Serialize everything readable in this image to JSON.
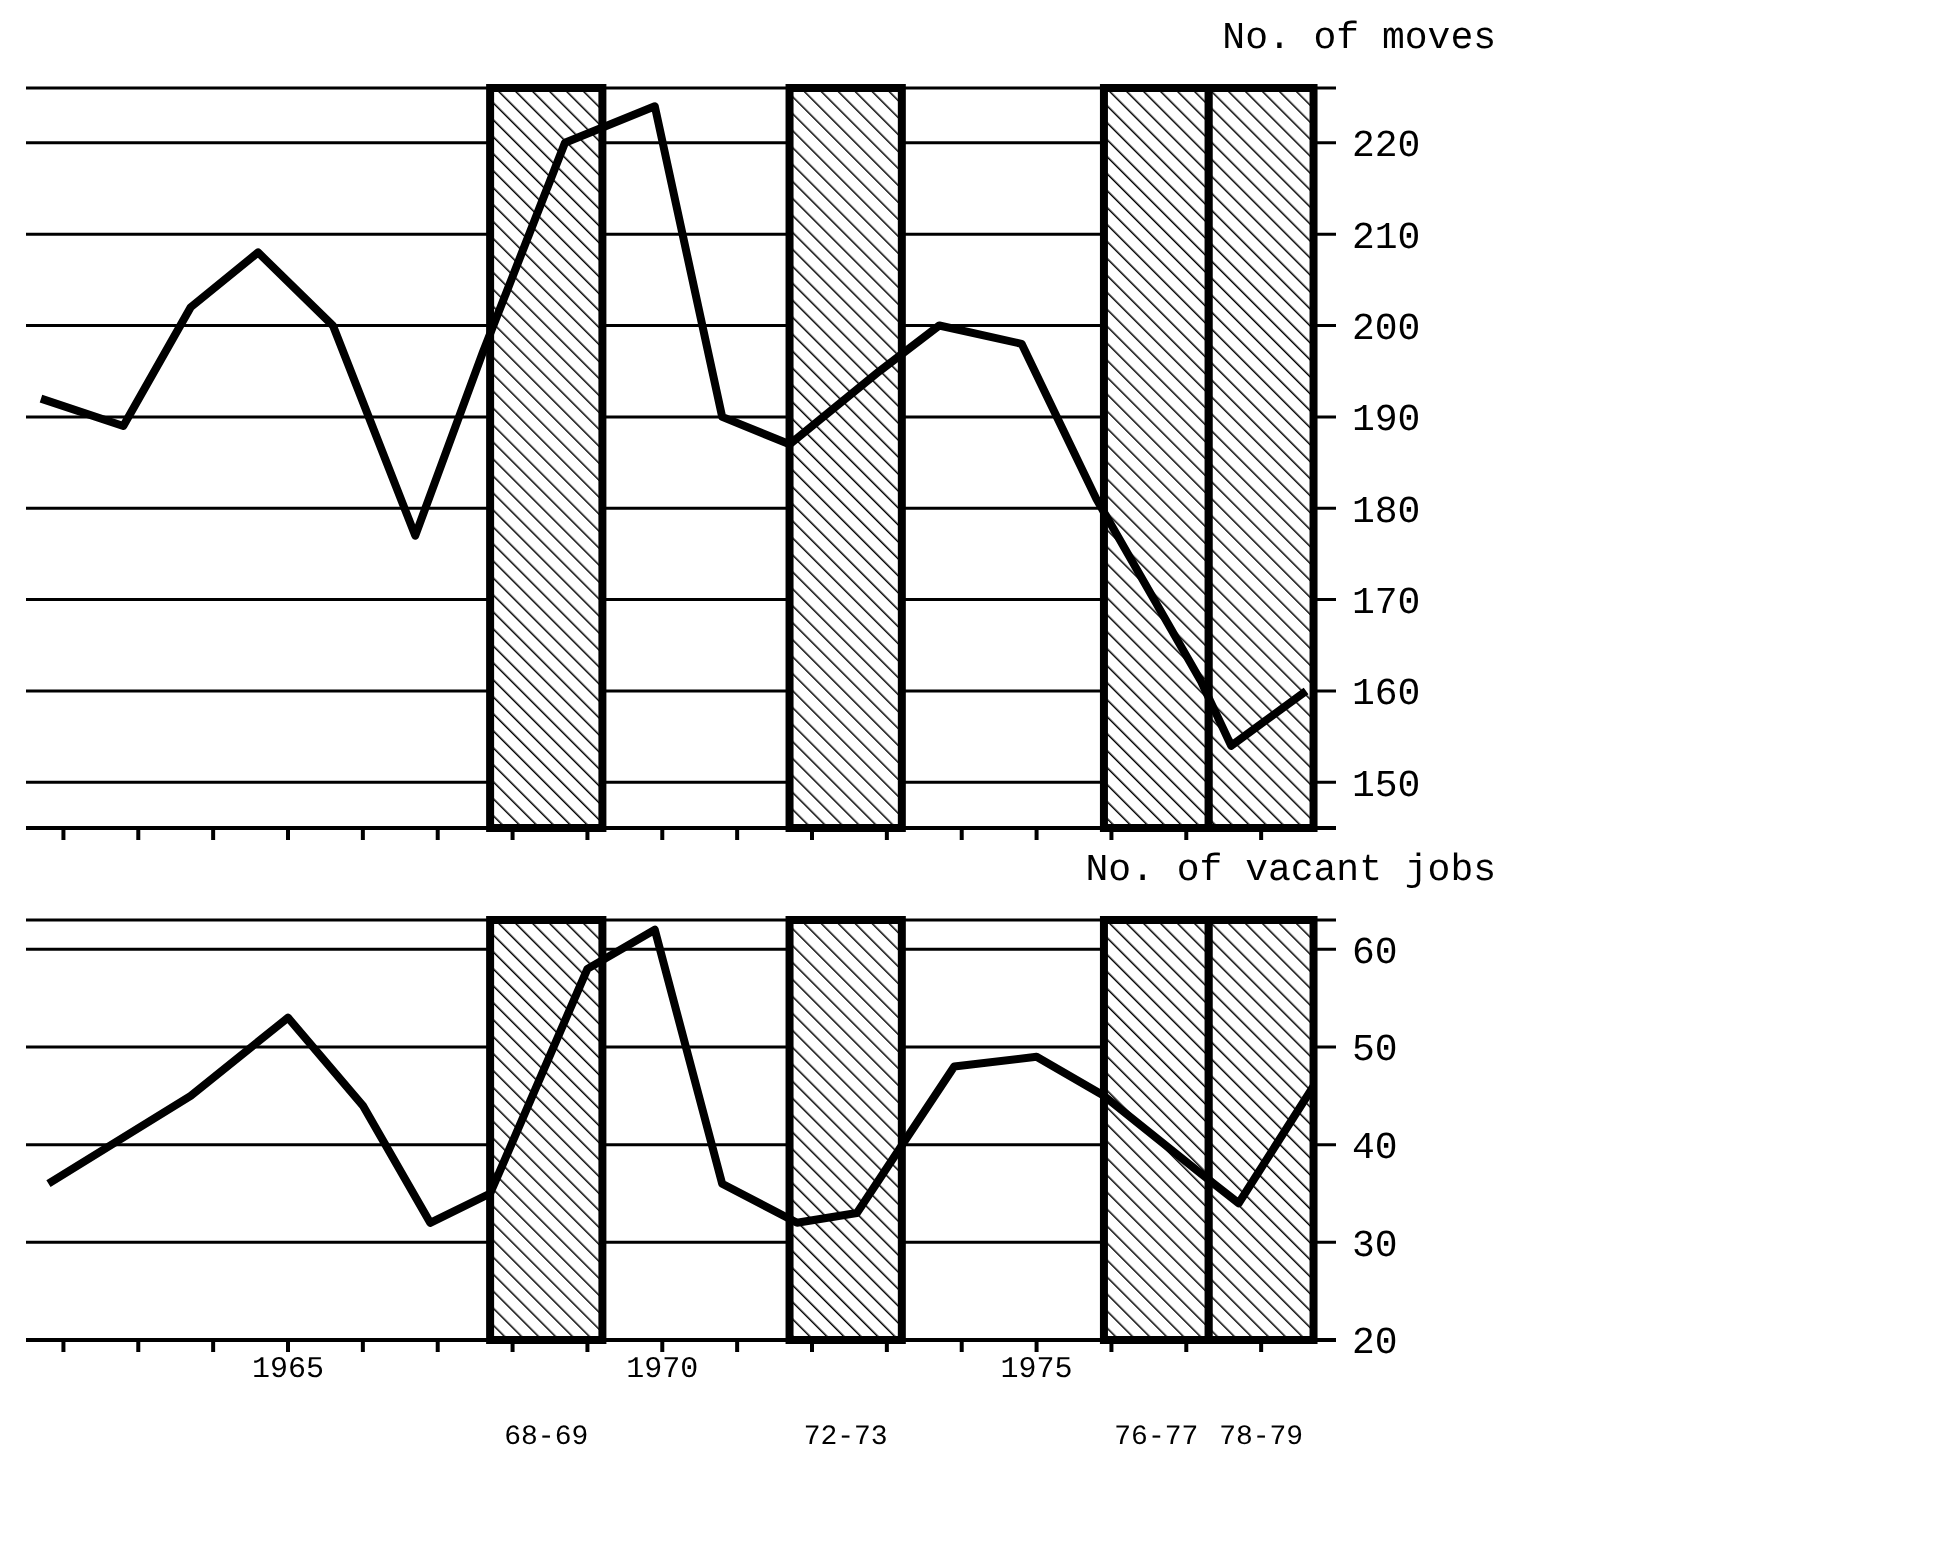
{
  "chart_data": [
    {
      "type": "line",
      "ylabel": "No. of moves",
      "x": [
        1961.7,
        1962.8,
        1963.7,
        1964.6,
        1965.6,
        1966.7,
        1967.6,
        1968.7,
        1969.9,
        1970.8,
        1971.7,
        1972.9,
        1973.7,
        1974.8,
        1975.8,
        1977.2,
        1977.6,
        1978.6
      ],
      "series": [
        {
          "color": "#000000",
          "values": [
            192,
            189,
            202,
            208,
            200,
            177,
            197,
            220,
            224,
            190,
            187,
            195,
            200,
            198,
            181,
            161,
            154,
            160
          ]
        }
      ],
      "xlim": [
        1961.5,
        1979
      ],
      "xticks": [
        {
          "value": 1962,
          "label": null
        },
        {
          "value": 1963,
          "label": null
        },
        {
          "value": 1964,
          "label": null
        },
        {
          "value": 1965,
          "label": null
        },
        {
          "value": 1966,
          "label": null
        },
        {
          "value": 1967,
          "label": null
        },
        {
          "value": 1968,
          "label": null
        },
        {
          "value": 1969,
          "label": null
        },
        {
          "value": 1970,
          "label": null
        },
        {
          "value": 1971,
          "label": null
        },
        {
          "value": 1972,
          "label": null
        },
        {
          "value": 1973,
          "label": null
        },
        {
          "value": 1974,
          "label": null
        },
        {
          "value": 1975,
          "label": null
        },
        {
          "value": 1976,
          "label": null
        },
        {
          "value": 1977,
          "label": null
        },
        {
          "value": 1978,
          "label": null
        }
      ],
      "ylim": [
        145,
        226
      ],
      "yticks": [
        150,
        160,
        170,
        180,
        190,
        200,
        210,
        220
      ],
      "grid": "y",
      "tick_labels": "y",
      "bands": [
        {
          "axis": "x",
          "from": 1967.7,
          "to": 1969.2,
          "color": "#000000"
        },
        {
          "axis": "x",
          "from": 1971.7,
          "to": 1973.2,
          "color": "#000000"
        },
        {
          "axis": "x",
          "from": 1975.9,
          "to": 1977.3,
          "color": "#000000"
        },
        {
          "axis": "x",
          "from": 1977.3,
          "to": 1978.7,
          "color": "#000000"
        }
      ]
    },
    {
      "type": "line",
      "ylabel": "No. of vacant jobs",
      "x": [
        1961.8,
        1963.7,
        1965,
        1966,
        1966.9,
        1967.7,
        1969,
        1969.9,
        1970.8,
        1971.8,
        1972.6,
        1973.9,
        1975,
        1975.9,
        1977.2,
        1977.7,
        1978.7
      ],
      "series": [
        {
          "color": "#000000",
          "values": [
            36,
            45,
            53,
            44,
            32,
            35,
            58,
            62,
            36,
            32,
            33,
            48,
            49,
            45,
            37,
            34,
            46
          ]
        }
      ],
      "xlim": [
        1961.5,
        1979
      ],
      "xticks": [
        {
          "value": 1962,
          "label": null
        },
        {
          "value": 1963,
          "label": null
        },
        {
          "value": 1964,
          "label": null
        },
        {
          "value": 1965,
          "label": "1965"
        },
        {
          "value": 1966,
          "label": null
        },
        {
          "value": 1967,
          "label": null
        },
        {
          "value": 1968,
          "label": null
        },
        {
          "value": 1969,
          "label": null
        },
        {
          "value": 1970,
          "label": "1970"
        },
        {
          "value": 1971,
          "label": null
        },
        {
          "value": 1972,
          "label": null
        },
        {
          "value": 1973,
          "label": null
        },
        {
          "value": 1974,
          "label": null
        },
        {
          "value": 1975,
          "label": "1975"
        },
        {
          "value": 1976,
          "label": null
        },
        {
          "value": 1977,
          "label": null
        },
        {
          "value": 1978,
          "label": null
        }
      ],
      "ylim": [
        20,
        63
      ],
      "yticks": [
        20,
        30,
        40,
        50,
        60
      ],
      "grid": "y",
      "bands": [
        {
          "axis": "x",
          "from": 1967.7,
          "to": 1969.2,
          "label": "68-69",
          "color": "#000000"
        },
        {
          "axis": "x",
          "from": 1971.7,
          "to": 1973.2,
          "label": "72-73",
          "color": "#000000"
        },
        {
          "axis": "x",
          "from": 1975.9,
          "to": 1977.3,
          "label": "76-77",
          "color": "#000000"
        },
        {
          "axis": "x",
          "from": 1977.3,
          "to": 1978.7,
          "label": "78-79",
          "color": "#000000"
        }
      ]
    }
  ]
}
